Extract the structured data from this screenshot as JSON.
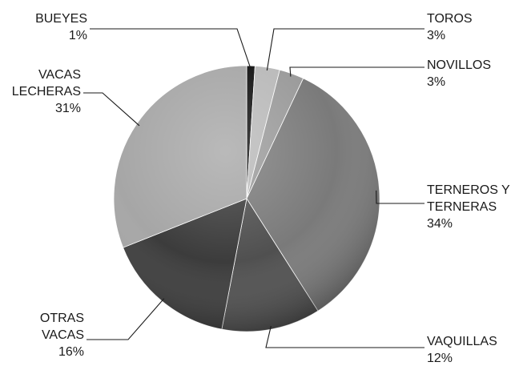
{
  "chart_data": {
    "type": "pie",
    "title": "",
    "slices": [
      {
        "label": "BUEYES",
        "value": 1,
        "lines": [
          "BUEYES",
          "1%"
        ],
        "color": "#111111"
      },
      {
        "label": "TOROS",
        "value": 3,
        "lines": [
          "TOROS",
          "3%"
        ],
        "color": "#b9b9b9"
      },
      {
        "label": "NOVILLOS",
        "value": 3,
        "lines": [
          "NOVILLOS",
          "3%"
        ],
        "color": "#9a9a9a"
      },
      {
        "label": "TERNEROS Y TERNERAS",
        "value": 34,
        "lines": [
          "TERNEROS Y",
          "TERNERAS",
          "34%"
        ],
        "color": "#7a7a7a"
      },
      {
        "label": "VAQUILLAS",
        "value": 12,
        "lines": [
          "VAQUILLAS",
          "12%"
        ],
        "color": "#505050"
      },
      {
        "label": "OTRAS VACAS",
        "value": 16,
        "lines": [
          "OTRAS",
          "VACAS",
          "16%"
        ],
        "color": "#3c3c3c"
      },
      {
        "label": "VACAS LECHERAS",
        "value": 31,
        "lines": [
          "VACAS",
          "LECHERAS",
          "31%"
        ],
        "color": "#a6a6a6"
      }
    ],
    "start": "top",
    "direction": "clockwise"
  }
}
